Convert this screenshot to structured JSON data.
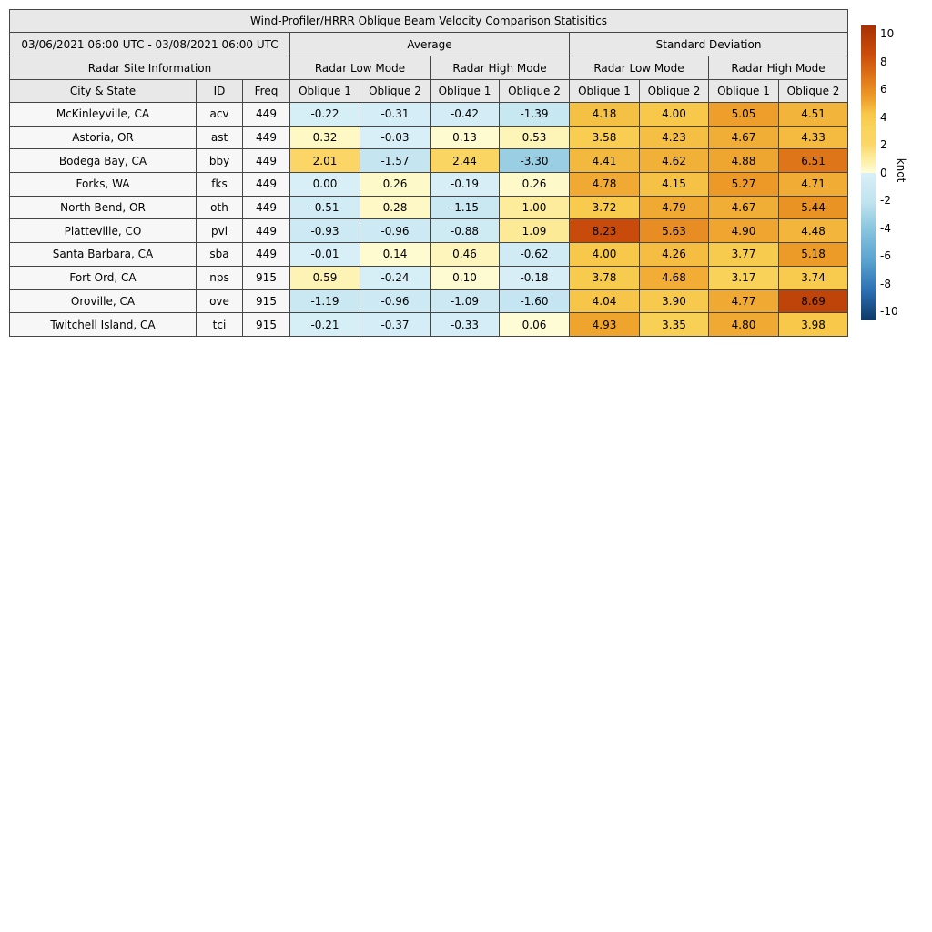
{
  "chart_data": {
    "type": "heatmap-table",
    "title": "Wind-Profiler/HRRR Oblique Beam Velocity Comparison Statisitics",
    "date_range": "03/06/2021 06:00 UTC - 03/08/2021 06:00 UTC",
    "labels": {
      "average": "Average",
      "standard_deviation": "Standard Deviation",
      "site_info": "Radar Site Information",
      "low_mode": "Radar Low Mode",
      "high_mode": "Radar High Mode",
      "city": "City & State",
      "id": "ID",
      "freq": "Freq",
      "oblique1": "Oblique 1",
      "oblique2": "Oblique 2"
    },
    "value_columns": [
      "Average / Radar Low Mode / Oblique 1",
      "Average / Radar Low Mode / Oblique 2",
      "Average / Radar High Mode / Oblique 1",
      "Average / Radar High Mode / Oblique 2",
      "Standard Deviation / Radar Low Mode / Oblique 1",
      "Standard Deviation / Radar Low Mode / Oblique 2",
      "Standard Deviation / Radar High Mode / Oblique 1",
      "Standard Deviation / Radar High Mode / Oblique 2"
    ],
    "rows": [
      {
        "city": "McKinleyville, CA",
        "id": "acv",
        "freq": 449,
        "values": [
          -0.22,
          -0.31,
          -0.42,
          -1.39,
          4.18,
          4.0,
          5.05,
          4.51
        ]
      },
      {
        "city": "Astoria, OR",
        "id": "ast",
        "freq": 449,
        "values": [
          0.32,
          -0.03,
          0.13,
          0.53,
          3.58,
          4.23,
          4.67,
          4.33
        ]
      },
      {
        "city": "Bodega Bay, CA",
        "id": "bby",
        "freq": 449,
        "values": [
          2.01,
          -1.57,
          2.44,
          -3.3,
          4.41,
          4.62,
          4.88,
          6.51
        ]
      },
      {
        "city": "Forks, WA",
        "id": "fks",
        "freq": 449,
        "values": [
          0.0,
          0.26,
          -0.19,
          0.26,
          4.78,
          4.15,
          5.27,
          4.71
        ]
      },
      {
        "city": "North Bend, OR",
        "id": "oth",
        "freq": 449,
        "values": [
          -0.51,
          0.28,
          -1.15,
          1.0,
          3.72,
          4.79,
          4.67,
          5.44
        ]
      },
      {
        "city": "Platteville, CO",
        "id": "pvl",
        "freq": 449,
        "values": [
          -0.93,
          -0.96,
          -0.88,
          1.09,
          8.23,
          5.63,
          4.9,
          4.48
        ]
      },
      {
        "city": "Santa Barbara, CA",
        "id": "sba",
        "freq": 449,
        "values": [
          -0.01,
          0.14,
          0.46,
          -0.62,
          4.0,
          4.26,
          3.77,
          5.18
        ]
      },
      {
        "city": "Fort Ord, CA",
        "id": "nps",
        "freq": 915,
        "values": [
          0.59,
          -0.24,
          0.1,
          -0.18,
          3.78,
          4.68,
          3.17,
          3.74
        ]
      },
      {
        "city": "Oroville, CA",
        "id": "ove",
        "freq": 915,
        "values": [
          -1.19,
          -0.96,
          -1.09,
          -1.6,
          4.04,
          3.9,
          4.77,
          8.69
        ]
      },
      {
        "city": "Twitchell Island, CA",
        "id": "tci",
        "freq": 915,
        "values": [
          -0.21,
          -0.37,
          -0.33,
          0.06,
          4.93,
          3.35,
          4.8,
          3.98
        ]
      }
    ],
    "colorbar": {
      "label": "knot",
      "min": -10,
      "max": 10,
      "ticks": [
        10,
        8,
        6,
        4,
        2,
        0,
        -2,
        -4,
        -6,
        -8,
        -10
      ],
      "stops": [
        [
          -10,
          "#0E3866"
        ],
        [
          -8,
          "#2C6FB3"
        ],
        [
          -6,
          "#5AA2CE"
        ],
        [
          -4,
          "#84C2DD"
        ],
        [
          -2,
          "#BFE3EF"
        ],
        [
          0,
          "#D9EFF7"
        ],
        [
          0.001,
          "#FEFDD8"
        ],
        [
          1,
          "#FDEC9C"
        ],
        [
          2,
          "#FBD566"
        ],
        [
          3,
          "#F9D45C"
        ],
        [
          4,
          "#F7C84A"
        ],
        [
          5,
          "#EEA12C"
        ],
        [
          6,
          "#E5821D"
        ],
        [
          8,
          "#CC4E0C"
        ],
        [
          10,
          "#A63103"
        ]
      ]
    }
  },
  "colors": {
    "header_bg": "#E8E8E8",
    "label_bg": "#F7F7F7",
    "border": "#454545"
  }
}
